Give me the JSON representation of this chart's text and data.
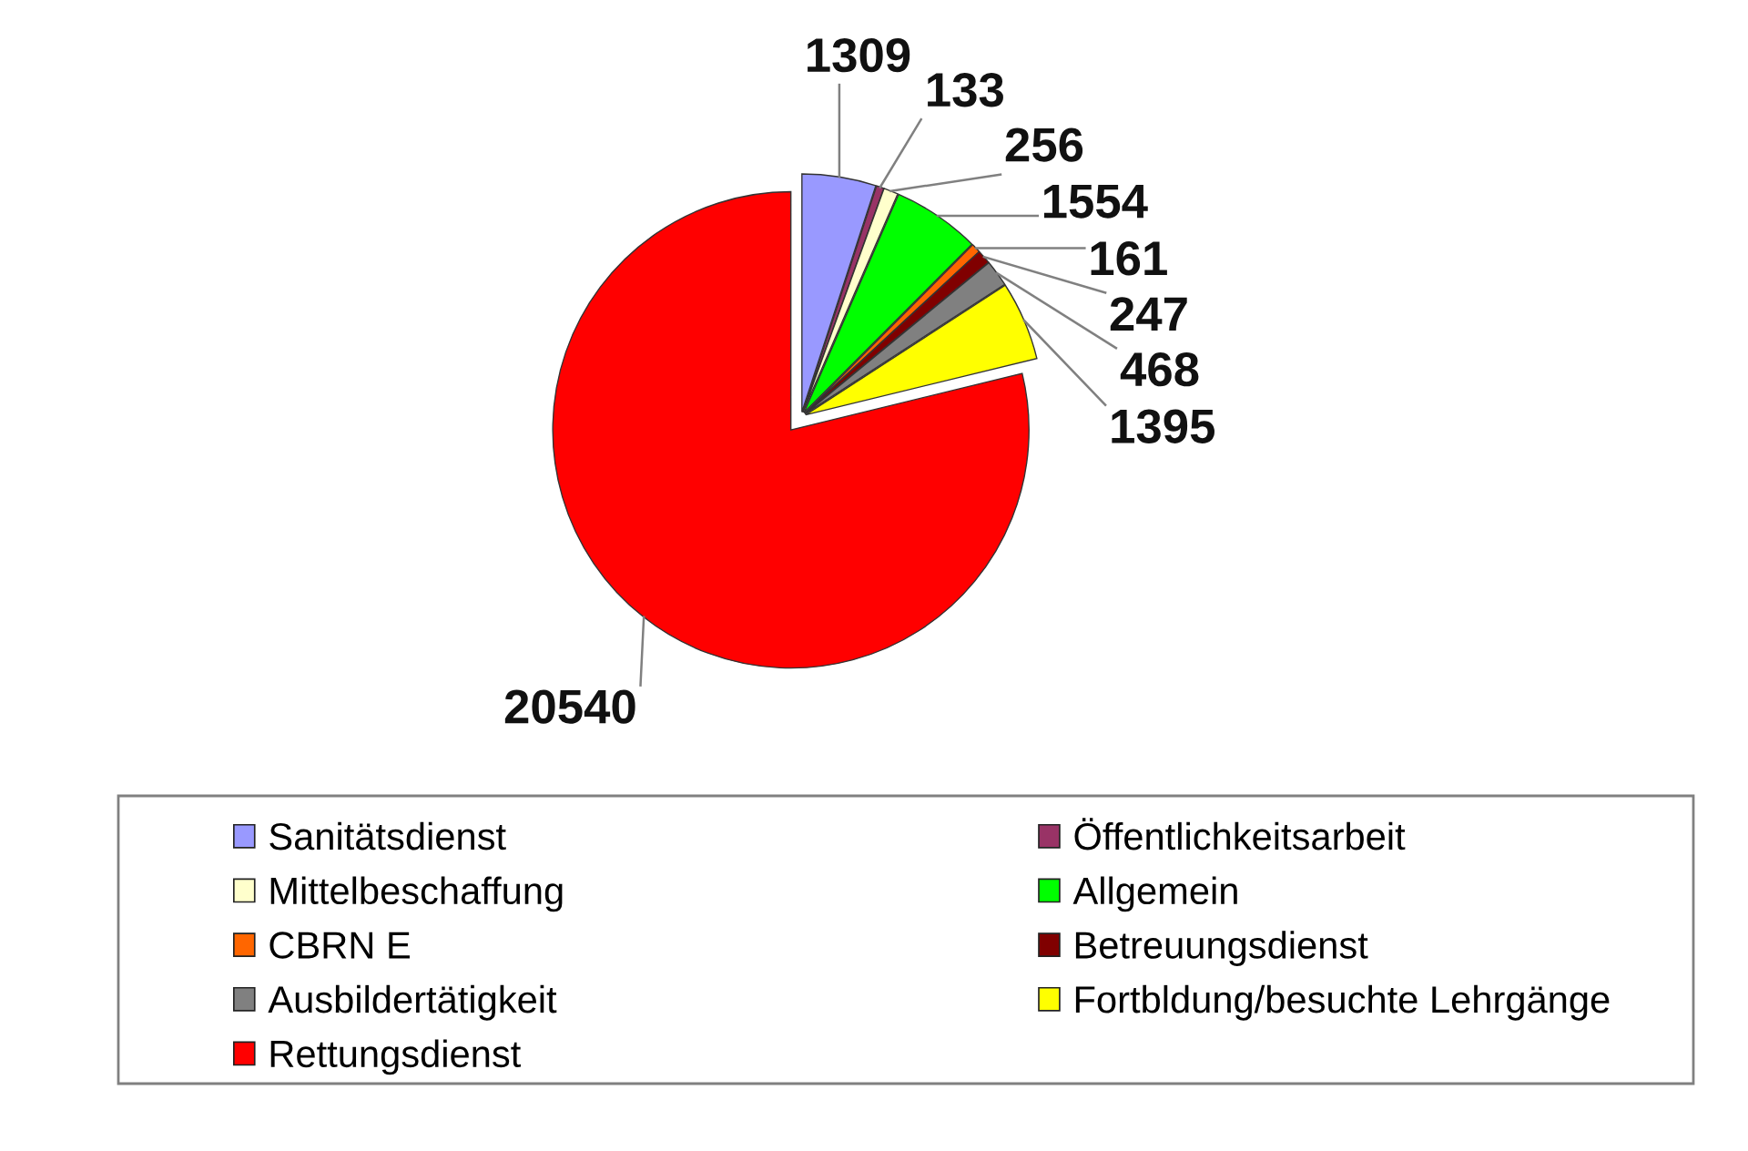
{
  "chart_data": {
    "type": "pie",
    "categories": [
      "Sanitätsdienst",
      "Öffentlichkeitsarbeit",
      "Mittelbeschaffung",
      "Allgemein",
      "CBRN E",
      "Betreuungsdienst",
      "Ausbildertätigkeit",
      "Fortbldung/besuchte Lehrgänge",
      "Rettungsdienst"
    ],
    "values": [
      1309,
      133,
      256,
      1554,
      161,
      247,
      468,
      1395,
      20540
    ],
    "colors": [
      "#9999ff",
      "#993366",
      "#ffffcc",
      "#00ff00",
      "#ff6600",
      "#800000",
      "#808080",
      "#ffff00",
      "#ff0000"
    ],
    "data_labels": true,
    "legend": "bottom"
  }
}
